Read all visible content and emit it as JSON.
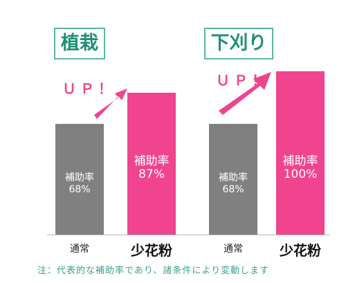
{
  "chart_data": {
    "type": "bar",
    "groups": [
      {
        "title": "植栽",
        "up_label": "ＵＰ！",
        "bars": [
          {
            "category": "通常",
            "label": "補助率",
            "value": 68,
            "value_label": "68%",
            "color": "#808080"
          },
          {
            "category": "少花粉",
            "label": "補助率",
            "value": 87,
            "value_label": "87%",
            "color": "#f0448f"
          }
        ]
      },
      {
        "title": "下刈り",
        "up_label": "ＵＰ！",
        "bars": [
          {
            "category": "通常",
            "label": "補助率",
            "value": 68,
            "value_label": "68%",
            "color": "#808080"
          },
          {
            "category": "少花粉",
            "label": "補助率",
            "value": 100,
            "value_label": "100%",
            "color": "#f0448f"
          }
        ]
      }
    ],
    "ylim": [
      0,
      100
    ],
    "grid": false,
    "note": "注：代表的な補助率であり、諸条件により変動します"
  }
}
